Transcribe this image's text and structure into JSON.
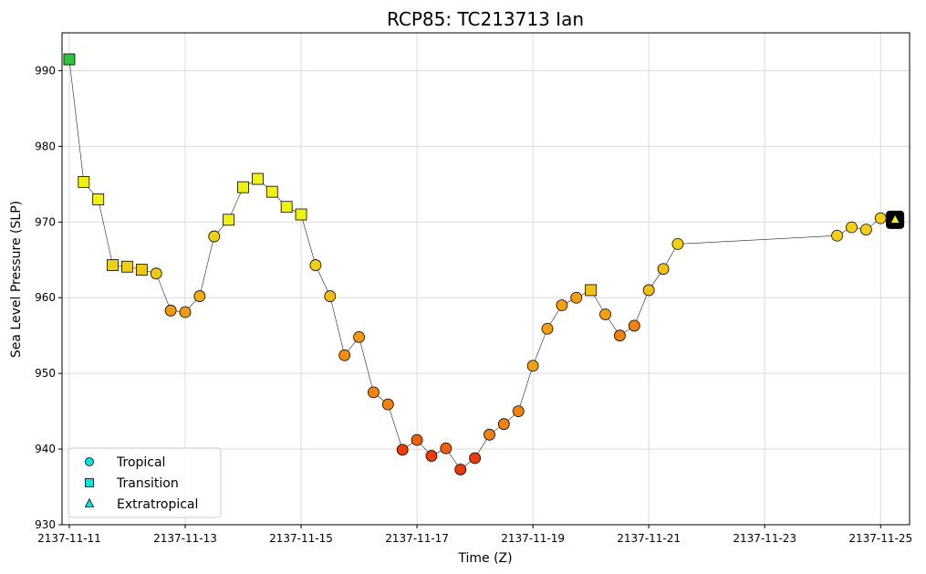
{
  "chart_data": {
    "type": "line",
    "title": "RCP85: TC213713 Ian",
    "xlabel": "Time (Z)",
    "ylabel": "Sea Level Pressure (SLP)",
    "xlim": [
      "2137-11-10T21:00",
      "2137-11-25T12:00"
    ],
    "ylim": [
      930,
      995
    ],
    "grid": true,
    "x_ticks": [
      "2137-11-11",
      "2137-11-13",
      "2137-11-15",
      "2137-11-17",
      "2137-11-19",
      "2137-11-21",
      "2137-11-23",
      "2137-11-25"
    ],
    "y_ticks": [
      930,
      940,
      950,
      960,
      970,
      980,
      990
    ],
    "legend": {
      "placement": "lower-left",
      "entries": [
        {
          "label": "Tropical",
          "marker": "circle",
          "color": "#00e5e5"
        },
        {
          "label": "Transition",
          "marker": "square",
          "color": "#00e5e5"
        },
        {
          "label": "Extratropical",
          "marker": "triangle",
          "color": "#00e5e5"
        }
      ]
    },
    "points": [
      {
        "t": "2137-11-11T00:00",
        "slp": 991.5,
        "type": "Transition",
        "color": "#2dc63b"
      },
      {
        "t": "2137-11-11T06:00",
        "slp": 975.3,
        "type": "Transition",
        "color": "#f2f20f"
      },
      {
        "t": "2137-11-11T12:00",
        "slp": 973.0,
        "type": "Transition",
        "color": "#f2f20f"
      },
      {
        "t": "2137-11-11T18:00",
        "slp": 964.3,
        "type": "Transition",
        "color": "#f0d010"
      },
      {
        "t": "2137-11-12T00:00",
        "slp": 964.1,
        "type": "Transition",
        "color": "#f0d010"
      },
      {
        "t": "2137-11-12T06:00",
        "slp": 963.7,
        "type": "Transition",
        "color": "#f0c810"
      },
      {
        "t": "2137-11-12T12:00",
        "slp": 963.2,
        "type": "Tropical",
        "color": "#f0c810"
      },
      {
        "t": "2137-11-12T18:00",
        "slp": 958.3,
        "type": "Tropical",
        "color": "#f29a0c"
      },
      {
        "t": "2137-11-13T00:00",
        "slp": 958.1,
        "type": "Tropical",
        "color": "#f29a0c"
      },
      {
        "t": "2137-11-13T06:00",
        "slp": 960.2,
        "type": "Tropical",
        "color": "#f2b00c"
      },
      {
        "t": "2137-11-13T12:00",
        "slp": 968.1,
        "type": "Tropical",
        "color": "#f2d010"
      },
      {
        "t": "2137-11-13T18:00",
        "slp": 970.3,
        "type": "Transition",
        "color": "#f2f20f"
      },
      {
        "t": "2137-11-14T00:00",
        "slp": 974.6,
        "type": "Transition",
        "color": "#f2f20f"
      },
      {
        "t": "2137-11-14T06:00",
        "slp": 975.7,
        "type": "Transition",
        "color": "#f2f20f"
      },
      {
        "t": "2137-11-14T12:00",
        "slp": 974.0,
        "type": "Transition",
        "color": "#f2f20f"
      },
      {
        "t": "2137-11-14T18:00",
        "slp": 972.0,
        "type": "Transition",
        "color": "#f2f20f"
      },
      {
        "t": "2137-11-15T00:00",
        "slp": 971.0,
        "type": "Transition",
        "color": "#f2f20f"
      },
      {
        "t": "2137-11-15T06:00",
        "slp": 964.3,
        "type": "Tropical",
        "color": "#f2d010"
      },
      {
        "t": "2137-11-15T12:00",
        "slp": 960.2,
        "type": "Tropical",
        "color": "#f2c010"
      },
      {
        "t": "2137-11-15T18:00",
        "slp": 952.4,
        "type": "Tropical",
        "color": "#f28c0c"
      },
      {
        "t": "2137-11-16T00:00",
        "slp": 954.8,
        "type": "Tropical",
        "color": "#f29a0c"
      },
      {
        "t": "2137-11-16T06:00",
        "slp": 947.5,
        "type": "Tropical",
        "color": "#f2820c"
      },
      {
        "t": "2137-11-16T12:00",
        "slp": 945.9,
        "type": "Tropical",
        "color": "#f2820c"
      },
      {
        "t": "2137-11-16T18:00",
        "slp": 939.9,
        "type": "Tropical",
        "color": "#ee3a0a"
      },
      {
        "t": "2137-11-17T00:00",
        "slp": 941.2,
        "type": "Tropical",
        "color": "#f0600a"
      },
      {
        "t": "2137-11-17T06:00",
        "slp": 939.1,
        "type": "Tropical",
        "color": "#ee3a0a"
      },
      {
        "t": "2137-11-17T12:00",
        "slp": 940.1,
        "type": "Tropical",
        "color": "#f0600a"
      },
      {
        "t": "2137-11-17T18:00",
        "slp": 937.3,
        "type": "Tropical",
        "color": "#ee3a0a"
      },
      {
        "t": "2137-11-18T00:00",
        "slp": 938.8,
        "type": "Tropical",
        "color": "#ee3a0a"
      },
      {
        "t": "2137-11-18T06:00",
        "slp": 941.9,
        "type": "Tropical",
        "color": "#f2820c"
      },
      {
        "t": "2137-11-18T12:00",
        "slp": 943.3,
        "type": "Tropical",
        "color": "#f2820c"
      },
      {
        "t": "2137-11-18T18:00",
        "slp": 945.0,
        "type": "Tropical",
        "color": "#f2820c"
      },
      {
        "t": "2137-11-19T00:00",
        "slp": 951.0,
        "type": "Tropical",
        "color": "#f2a00c"
      },
      {
        "t": "2137-11-19T06:00",
        "slp": 955.9,
        "type": "Tropical",
        "color": "#f2a00c"
      },
      {
        "t": "2137-11-19T12:00",
        "slp": 959.0,
        "type": "Tropical",
        "color": "#f2a00c"
      },
      {
        "t": "2137-11-19T18:00",
        "slp": 960.0,
        "type": "Tropical",
        "color": "#f2a00c"
      },
      {
        "t": "2137-11-20T00:00",
        "slp": 961.0,
        "type": "Transition",
        "color": "#f2c010"
      },
      {
        "t": "2137-11-20T06:00",
        "slp": 957.8,
        "type": "Tropical",
        "color": "#f2a00c"
      },
      {
        "t": "2137-11-20T12:00",
        "slp": 955.0,
        "type": "Tropical",
        "color": "#f2820c"
      },
      {
        "t": "2137-11-20T18:00",
        "slp": 956.3,
        "type": "Tropical",
        "color": "#f2820c"
      },
      {
        "t": "2137-11-21T00:00",
        "slp": 961.0,
        "type": "Tropical",
        "color": "#f2c010"
      },
      {
        "t": "2137-11-21T06:00",
        "slp": 963.8,
        "type": "Tropical",
        "color": "#f2c010"
      },
      {
        "t": "2137-11-21T12:00",
        "slp": 967.1,
        "type": "Tropical",
        "color": "#f2d010"
      },
      {
        "t": "2137-11-24T06:00",
        "slp": 968.2,
        "type": "Tropical",
        "color": "#f2d010"
      },
      {
        "t": "2137-11-24T12:00",
        "slp": 969.3,
        "type": "Tropical",
        "color": "#f2d010"
      },
      {
        "t": "2137-11-24T18:00",
        "slp": 969.0,
        "type": "Tropical",
        "color": "#f2d010"
      },
      {
        "t": "2137-11-25T00:00",
        "slp": 970.5,
        "type": "Tropical",
        "color": "#f2d010"
      },
      {
        "t": "2137-11-25T06:00",
        "slp": 970.3,
        "type": "Extratropical",
        "color": "#f2f20f"
      }
    ]
  }
}
